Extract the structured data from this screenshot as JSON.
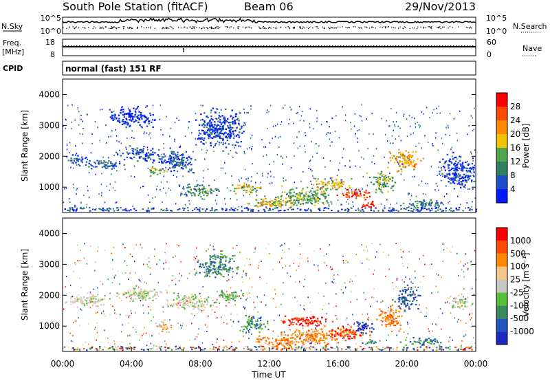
{
  "header": {
    "station": "South Pole Station (fitACF)",
    "beam": "Beam 06",
    "date": "29/Nov/2013"
  },
  "panels": {
    "nsky_label": "N.Sky",
    "nsky_ticks": [
      "10^5",
      "10^0"
    ],
    "nsearch_label": "N.Search",
    "nsearch_ticks": [
      "10^5",
      "10^0"
    ],
    "freq_label_1": "Freq.",
    "freq_label_2": "[MHz]",
    "freq_ticks": [
      "18",
      "8"
    ],
    "nave_label": "Nave",
    "nave_ticks": [
      "60",
      "0"
    ],
    "cpid_label": "CPID",
    "cpid_text": "normal (fast) 151 RF"
  },
  "colors": {
    "power": [
      "#0019ff",
      "#1f4fc8",
      "#2f7f5f",
      "#4fa64f",
      "#f0c400",
      "#ff8a00",
      "#ff4a00",
      "#ff0000"
    ],
    "velocity": [
      "#ff0000",
      "#ff4a00",
      "#ff8a00",
      "#f5c88a",
      "#c8c8c8",
      "#58c038",
      "#3a8a5a",
      "#2255c0",
      "#1a2ac0"
    ]
  },
  "chart_data": [
    {
      "type": "heatmap",
      "name": "power",
      "xlabel": "",
      "ylabel": "Slant Range [km]",
      "ylim": [
        180,
        4500
      ],
      "yticks": [
        "4000",
        "3000",
        "2000",
        "1000"
      ],
      "colorbar": {
        "label": "Power [dB]",
        "range": [
          0,
          32
        ],
        "ticks": [
          "28",
          "24",
          "20",
          "16",
          "12",
          "8",
          "4"
        ]
      },
      "blobs": [
        {
          "t": 0.8,
          "r": 1900,
          "dt": 0.8,
          "dr": 250,
          "v": 6
        },
        {
          "t": 2.5,
          "r": 1750,
          "dt": 1.5,
          "dr": 200,
          "v": 7
        },
        {
          "t": 4.5,
          "r": 2100,
          "dt": 1.6,
          "dr": 300,
          "v": 5
        },
        {
          "t": 5.5,
          "r": 1550,
          "dt": 0.8,
          "dr": 200,
          "v": 14
        },
        {
          "t": 6.5,
          "r": 1900,
          "dt": 1.5,
          "dr": 500,
          "v": 6
        },
        {
          "t": 9.0,
          "r": 2900,
          "dt": 2.0,
          "dr": 800,
          "v": 5
        },
        {
          "t": 4.0,
          "r": 3300,
          "dt": 2.0,
          "dr": 400,
          "v": 3
        },
        {
          "t": 8.0,
          "r": 900,
          "dt": 1.5,
          "dr": 300,
          "v": 12
        },
        {
          "t": 10.5,
          "r": 1000,
          "dt": 1.2,
          "dr": 250,
          "v": 17
        },
        {
          "t": 12.0,
          "r": 500,
          "dt": 1.8,
          "dr": 250,
          "v": 19
        },
        {
          "t": 14.0,
          "r": 700,
          "dt": 2.5,
          "dr": 400,
          "v": 14
        },
        {
          "t": 15.5,
          "r": 1100,
          "dt": 1.5,
          "dr": 300,
          "v": 18
        },
        {
          "t": 17.0,
          "r": 800,
          "dt": 1.2,
          "dr": 250,
          "v": 28
        },
        {
          "t": 17.8,
          "r": 450,
          "dt": 0.8,
          "dr": 150,
          "v": 30
        },
        {
          "t": 18.5,
          "r": 1200,
          "dt": 1.0,
          "dr": 500,
          "v": 14
        },
        {
          "t": 19.8,
          "r": 1900,
          "dt": 1.2,
          "dr": 500,
          "v": 20
        },
        {
          "t": 21.0,
          "r": 500,
          "dt": 1.5,
          "dr": 200,
          "v": 10
        },
        {
          "t": 23.0,
          "r": 1500,
          "dt": 1.5,
          "dr": 700,
          "v": 4
        }
      ]
    },
    {
      "type": "heatmap",
      "name": "velocity",
      "xlabel": "Time UT",
      "ylabel": "Slant Range [km]",
      "xlim": [
        0,
        24
      ],
      "ylim": [
        180,
        4500
      ],
      "xticks": [
        "00:00",
        "04:00",
        "08:00",
        "12:00",
        "16:00",
        "20:00",
        "00:00"
      ],
      "yticks": [
        "4000",
        "3000",
        "2000",
        "1000"
      ],
      "colorbar": {
        "label": "Velocity [m s⁻¹]",
        "ticks": [
          "1000",
          "500",
          "100",
          "25",
          "-25",
          "-100",
          "-500",
          "-1000"
        ]
      },
      "blobs": [
        {
          "t": 1.5,
          "r": 1850,
          "dt": 2.0,
          "dr": 250,
          "v": 4
        },
        {
          "t": 4.5,
          "r": 2050,
          "dt": 2.0,
          "dr": 300,
          "v": 4
        },
        {
          "t": 7.5,
          "r": 1800,
          "dt": 2.0,
          "dr": 350,
          "v": 4
        },
        {
          "t": 5.8,
          "r": 1050,
          "dt": 0.6,
          "dr": 300,
          "v": 5
        },
        {
          "t": 9.0,
          "r": 3000,
          "dt": 1.5,
          "dr": 600,
          "v": 2
        },
        {
          "t": 9.5,
          "r": 2000,
          "dt": 1.0,
          "dr": 300,
          "v": 3
        },
        {
          "t": 11.0,
          "r": 1100,
          "dt": 1.0,
          "dr": 400,
          "v": 2
        },
        {
          "t": 12.5,
          "r": 500,
          "dt": 2.0,
          "dr": 300,
          "v": 6
        },
        {
          "t": 14.5,
          "r": 700,
          "dt": 2.5,
          "dr": 400,
          "v": 6
        },
        {
          "t": 14.0,
          "r": 1200,
          "dt": 2.0,
          "dr": 250,
          "v": 8
        },
        {
          "t": 16.5,
          "r": 800,
          "dt": 1.5,
          "dr": 300,
          "v": 7
        },
        {
          "t": 17.5,
          "r": 1000,
          "dt": 0.8,
          "dr": 300,
          "v": 0
        },
        {
          "t": 17.8,
          "r": 500,
          "dt": 0.6,
          "dr": 150,
          "v": 2
        },
        {
          "t": 19.0,
          "r": 1300,
          "dt": 1.0,
          "dr": 600,
          "v": 6
        },
        {
          "t": 20.0,
          "r": 1900,
          "dt": 1.0,
          "dr": 500,
          "v": 1
        },
        {
          "t": 21.0,
          "r": 500,
          "dt": 1.5,
          "dr": 200,
          "v": 2
        },
        {
          "t": 23.0,
          "r": 1800,
          "dt": 1.0,
          "dr": 300,
          "v": 4
        }
      ]
    }
  ]
}
